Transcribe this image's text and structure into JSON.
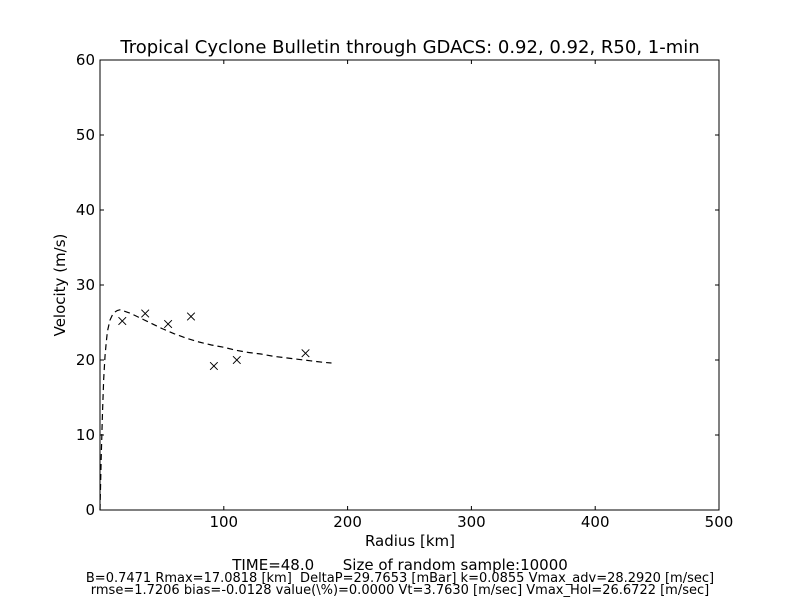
{
  "chart_data": {
    "type": "line",
    "title": "Tropical Cyclone Bulletin through GDACS: 0.92, 0.92, R50, 1-min",
    "xlabel": "Radius [km]",
    "ylabel": "Velocity (m/s)",
    "xlim": [
      0,
      500
    ],
    "ylim": [
      0,
      60
    ],
    "xticks": [
      0,
      100,
      200,
      300,
      400,
      500
    ],
    "yticks": [
      0,
      10,
      20,
      30,
      40,
      50,
      60
    ],
    "xtick_labels": [
      "100",
      "200",
      "300",
      "400",
      "500"
    ],
    "ytick_labels": [
      "0",
      "10",
      "20",
      "30",
      "40",
      "50",
      "60"
    ],
    "grid": false,
    "legend": "none",
    "series": [
      {
        "style": "dashed-line",
        "color": "#000000",
        "x": [
          0,
          1,
          2,
          3,
          4,
          5,
          6,
          8,
          10,
          12,
          14,
          16,
          17.08,
          20,
          25,
          30,
          35,
          40,
          50,
          60,
          70,
          80,
          90,
          100,
          110,
          120,
          130,
          140,
          150,
          160,
          170,
          180,
          187
        ],
        "y": [
          0,
          7,
          13,
          17.5,
          20.5,
          22.3,
          23.8,
          25.3,
          26.0,
          26.4,
          26.6,
          26.7,
          26.7,
          26.5,
          26.2,
          25.8,
          25.4,
          25.0,
          24.2,
          23.5,
          22.9,
          22.4,
          22.0,
          21.7,
          21.3,
          21.0,
          20.8,
          20.5,
          20.3,
          20.1,
          19.9,
          19.7,
          19.6
        ]
      },
      {
        "style": "x-markers",
        "color": "#000000",
        "x": [
          18,
          36.5,
          55,
          73.5,
          92,
          110.5,
          166
        ],
        "y": [
          25.2,
          26.2,
          24.8,
          25.8,
          19.2,
          20.0,
          20.9
        ]
      }
    ]
  },
  "footer": {
    "line1": "TIME=48.0      Size of random sample:10000",
    "line2": "B=0.7471 Rmax=17.0818 [km]  DeltaP=29.7653 [mBar] k=0.0855 Vmax_adv=28.2920 [m/sec]",
    "line3": "rmse=1.7206 bias=-0.0128 value(\\%)=0.0000 Vt=3.7630 [m/sec] Vmax_Hol=26.6722 [m/sec]"
  }
}
